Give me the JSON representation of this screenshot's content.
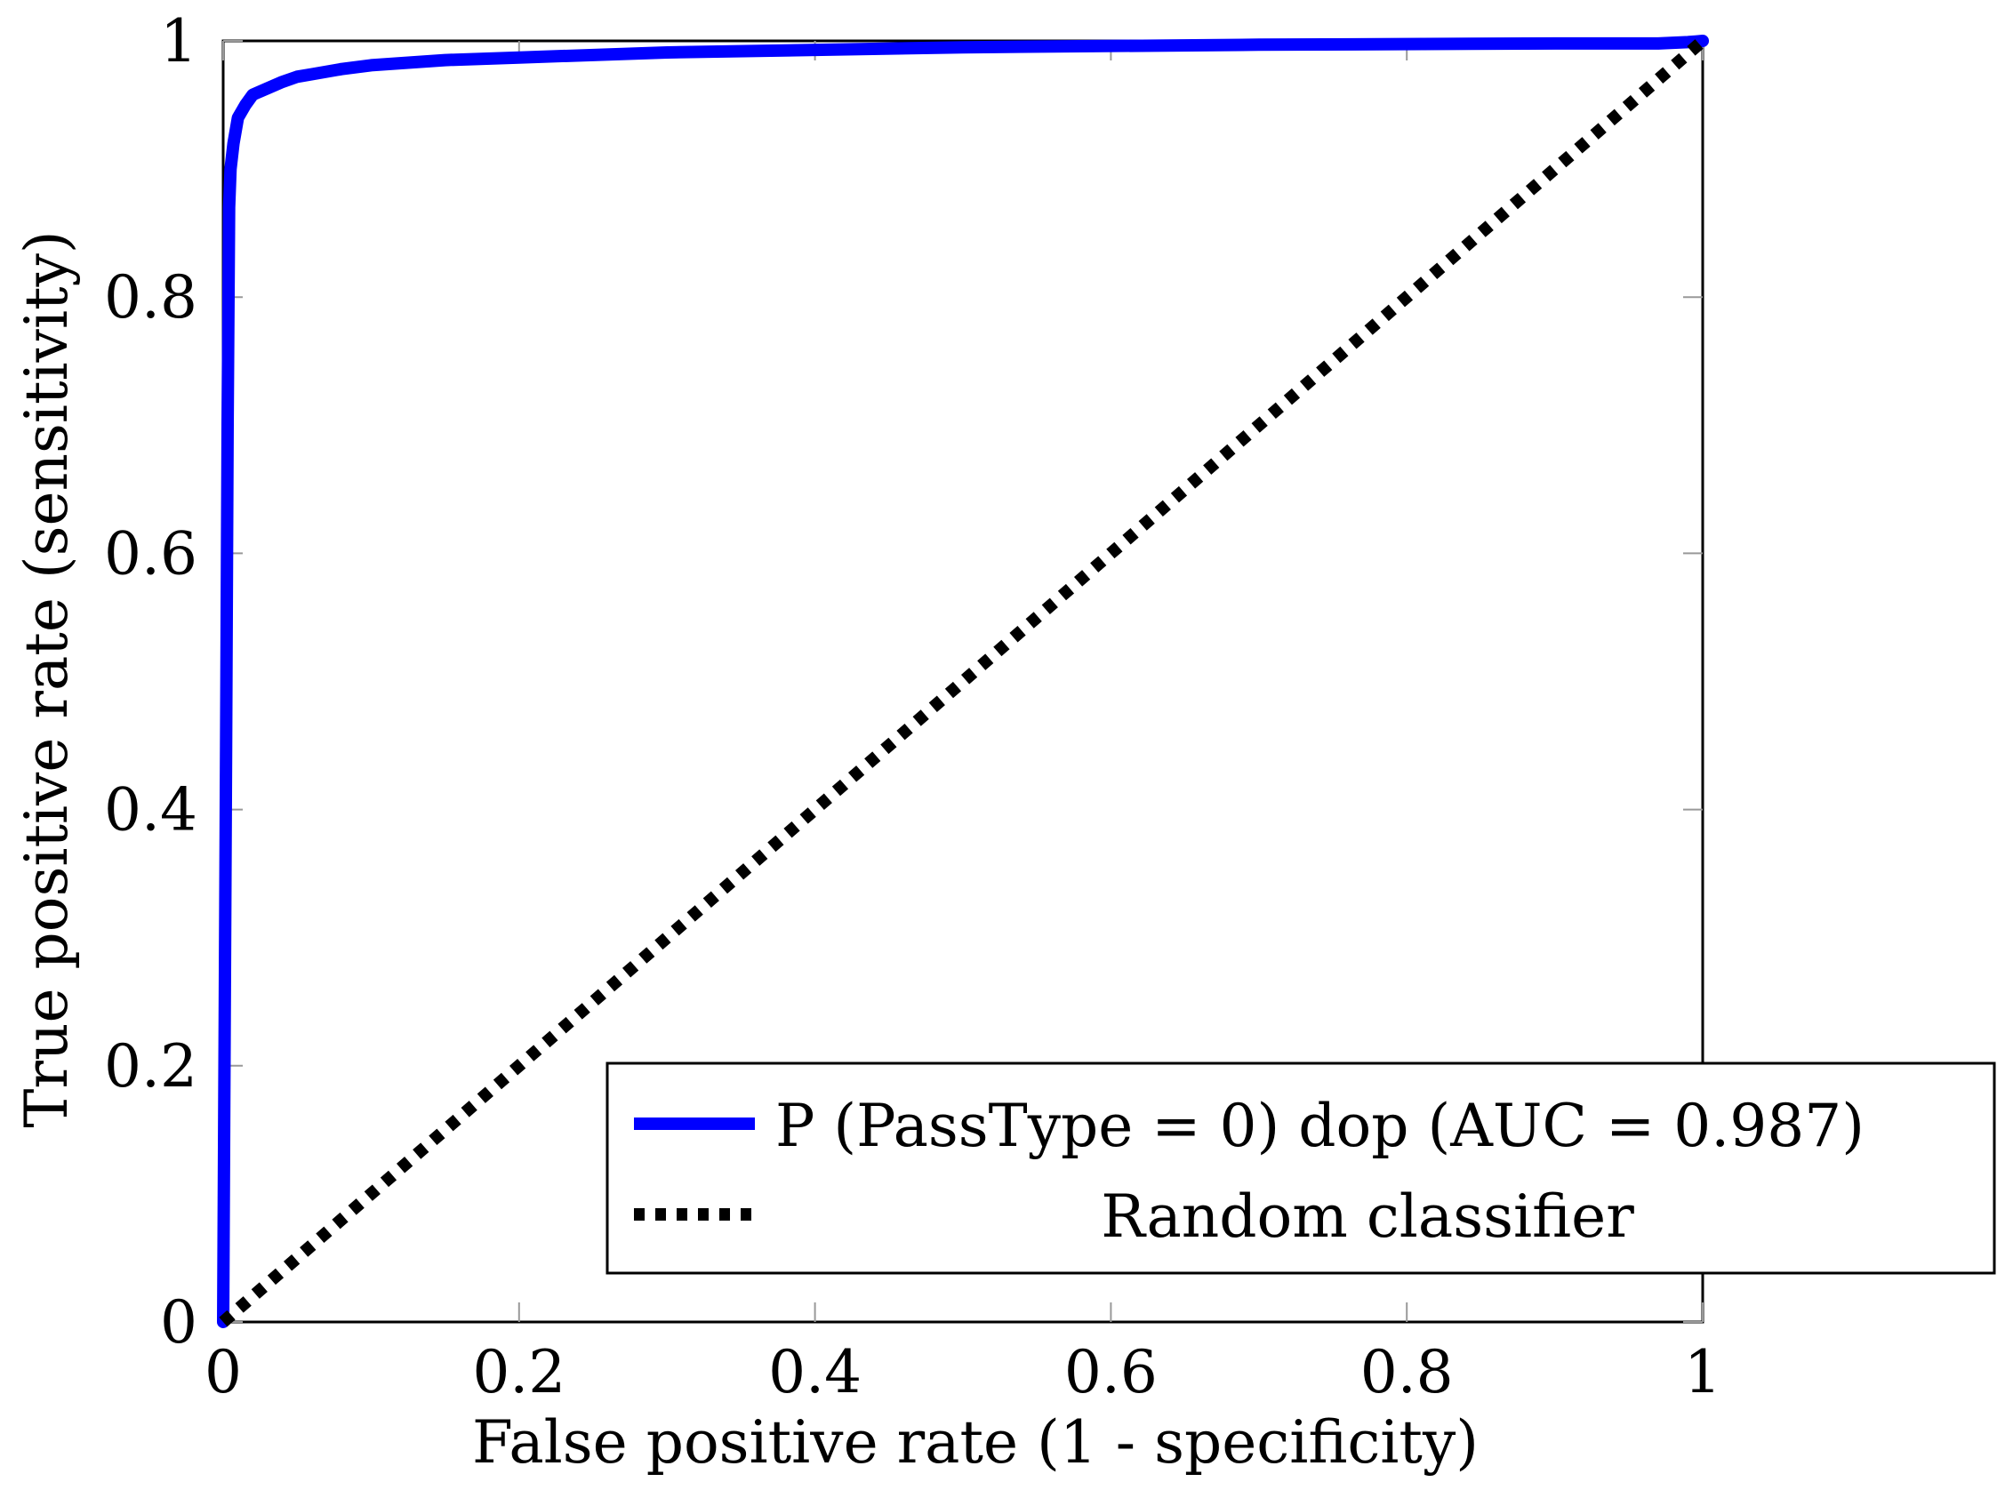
{
  "chart_data": {
    "type": "line",
    "title": "",
    "xlabel": "False positive rate (1 - specificity)",
    "ylabel": "True positive rate (sensitivity)",
    "xlim": [
      0,
      1
    ],
    "ylim": [
      0,
      1
    ],
    "xticks": [
      0,
      0.2,
      0.4,
      0.6,
      0.8,
      1
    ],
    "xtick_labels": [
      "0",
      "0.2",
      "0.4",
      "0.6",
      "0.8",
      "1"
    ],
    "yticks": [
      0,
      0.2,
      0.4,
      0.6,
      0.8,
      1
    ],
    "ytick_labels": [
      "0",
      "0.2",
      "0.4",
      "0.6",
      "0.8",
      "1"
    ],
    "grid": false,
    "legend_position": "bottom-right",
    "series": [
      {
        "name": "P (PassType = 0) dop (AUC = 0.987)",
        "color": "#0000ff",
        "style": "solid",
        "x": [
          0,
          0.002,
          0.003,
          0.004,
          0.005,
          0.007,
          0.01,
          0.015,
          0.02,
          0.03,
          0.04,
          0.05,
          0.06,
          0.08,
          0.1,
          0.15,
          0.2,
          0.3,
          0.5,
          0.7,
          0.9,
          0.97,
          0.99,
          1.0
        ],
        "y": [
          0,
          0.45,
          0.7,
          0.87,
          0.9,
          0.92,
          0.94,
          0.95,
          0.958,
          0.963,
          0.968,
          0.972,
          0.974,
          0.978,
          0.981,
          0.985,
          0.987,
          0.991,
          0.995,
          0.997,
          0.998,
          0.998,
          0.999,
          1.0
        ]
      },
      {
        "name": "Random classifier",
        "color": "#000000",
        "style": "dotted",
        "x": [
          0,
          1
        ],
        "y": [
          0,
          1
        ]
      }
    ]
  }
}
